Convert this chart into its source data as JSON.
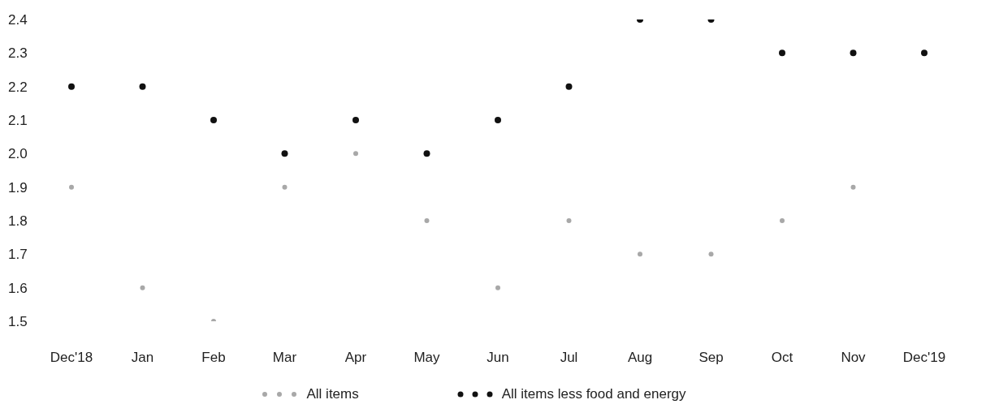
{
  "chart_data": {
    "type": "scatter",
    "categories": [
      "Dec'18",
      "Jan",
      "Feb",
      "Mar",
      "Apr",
      "May",
      "Jun",
      "Jul",
      "Aug",
      "Sep",
      "Oct",
      "Nov",
      "Dec'19"
    ],
    "series": [
      {
        "name": "All items",
        "color": "#a8a8a8",
        "values": [
          1.9,
          1.6,
          1.5,
          1.9,
          2.0,
          1.8,
          1.6,
          1.8,
          1.7,
          1.7,
          1.8,
          1.9,
          null
        ]
      },
      {
        "name": "All items less food and energy",
        "color": "#111111",
        "values": [
          2.2,
          2.2,
          2.1,
          2.0,
          2.1,
          2.0,
          2.1,
          2.2,
          2.4,
          2.4,
          2.3,
          2.3,
          2.3
        ]
      }
    ],
    "ylim": [
      1.5,
      2.4
    ],
    "yticks": [
      1.5,
      1.6,
      1.7,
      1.8,
      1.9,
      {
        "value": 2,
        "label": "2.0"
      },
      2.1,
      2.2,
      2.3,
      2.4
    ],
    "grid": false,
    "legend": "bottom",
    "marker": "circle"
  }
}
